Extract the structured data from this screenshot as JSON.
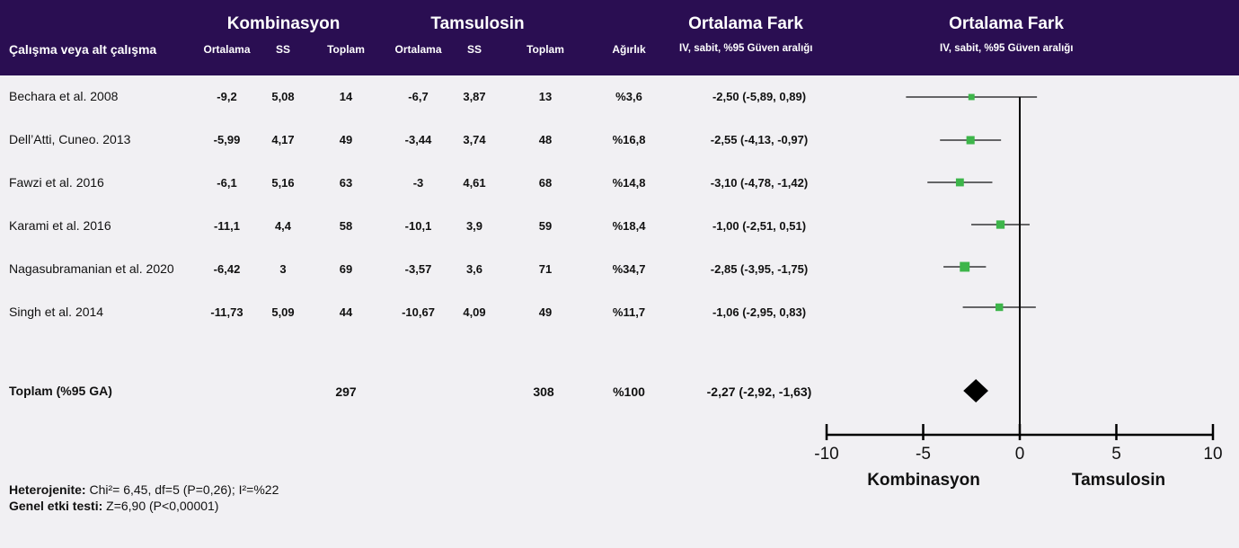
{
  "header": {
    "group_combo": "Kombinasyon",
    "group_tams": "Tamsulosin",
    "group_md": "Ortalama Fark",
    "group_md_plot": "Ortalama Fark",
    "col_study": "Çalışma veya alt çalışma",
    "col_mean": "Ortalama",
    "col_sd": "SS",
    "col_total": "Toplam",
    "col_weight": "Ağırlık",
    "ci_method": "IV, sabit, %95 Güven aralığı",
    "ci_method_plot": "IV, sabit, %95 Güven aralığı"
  },
  "studies": [
    {
      "name": "Bechara et al. 2008",
      "c_mean": "-9,2",
      "c_sd": "5,08",
      "c_total": "14",
      "t_mean": "-6,7",
      "t_sd": "3,87",
      "t_total": "13",
      "weight": "%3,6",
      "ci": "-2,50 (-5,89, 0,89)"
    },
    {
      "name": "Dell’Atti, Cuneo. 2013",
      "c_mean": "-5,99",
      "c_sd": "4,17",
      "c_total": "49",
      "t_mean": "-3,44",
      "t_sd": "3,74",
      "t_total": "48",
      "weight": "%16,8",
      "ci": "-2,55 (-4,13, -0,97)"
    },
    {
      "name": "Fawzi et al. 2016",
      "c_mean": "-6,1",
      "c_sd": "5,16",
      "c_total": "63",
      "t_mean": "-3",
      "t_sd": "4,61",
      "t_total": "68",
      "weight": "%14,8",
      "ci": "-3,10 (-4,78, -1,42)"
    },
    {
      "name": "Karami et al. 2016",
      "c_mean": "-11,1",
      "c_sd": "4,4",
      "c_total": "58",
      "t_mean": "-10,1",
      "t_sd": "3,9",
      "t_total": "59",
      "weight": "%18,4",
      "ci": "-1,00 (-2,51, 0,51)"
    },
    {
      "name": "Nagasubramanian et al. 2020",
      "c_mean": "-6,42",
      "c_sd": "3",
      "c_total": "69",
      "t_mean": "-3,57",
      "t_sd": "3,6",
      "t_total": "71",
      "weight": "%34,7",
      "ci": "-2,85 (-3,95, -1,75)"
    },
    {
      "name": "Singh et al. 2014",
      "c_mean": "-11,73",
      "c_sd": "5,09",
      "c_total": "44",
      "t_mean": "-10,67",
      "t_sd": "4,09",
      "t_total": "49",
      "weight": "%11,7",
      "ci": "-1,06 (-2,95, 0,83)"
    }
  ],
  "total": {
    "label": "Toplam (%95 GA)",
    "c_total": "297",
    "t_total": "308",
    "weight": "%100",
    "ci": "-2,27 (-2,92, -1,63)"
  },
  "footer": {
    "het_label": "Heterojenite:",
    "het_text": "Chi²= 6,45, df=5 (P=0,26); I²=%22",
    "effect_label": "Genel etki testi:",
    "effect_text": "Z=6,90 (P<0,00001)"
  },
  "colors": {
    "header_bg": "#2a0e52",
    "marker": "#3db54a",
    "diamond": "#000000"
  },
  "chart_data": {
    "type": "forest",
    "xlim": [
      -10,
      10
    ],
    "xticks": [
      -10,
      -5,
      0,
      5,
      10
    ],
    "xtick_labels": [
      "-10",
      "-5",
      "0",
      "5",
      "10"
    ],
    "favours_left": "Kombinasyon",
    "favours_right": "Tamsulosin",
    "points": [
      {
        "md": -2.5,
        "lo": -5.89,
        "hi": 0.89,
        "weight": 3.6
      },
      {
        "md": -2.55,
        "lo": -4.13,
        "hi": -0.97,
        "weight": 16.8
      },
      {
        "md": -3.1,
        "lo": -4.78,
        "hi": -1.42,
        "weight": 14.8
      },
      {
        "md": -1.0,
        "lo": -2.51,
        "hi": 0.51,
        "weight": 18.4
      },
      {
        "md": -2.85,
        "lo": -3.95,
        "hi": -1.75,
        "weight": 34.7
      },
      {
        "md": -1.06,
        "lo": -2.95,
        "hi": 0.83,
        "weight": 11.7
      }
    ],
    "pooled": {
      "md": -2.27,
      "lo": -2.92,
      "hi": -1.63
    }
  }
}
